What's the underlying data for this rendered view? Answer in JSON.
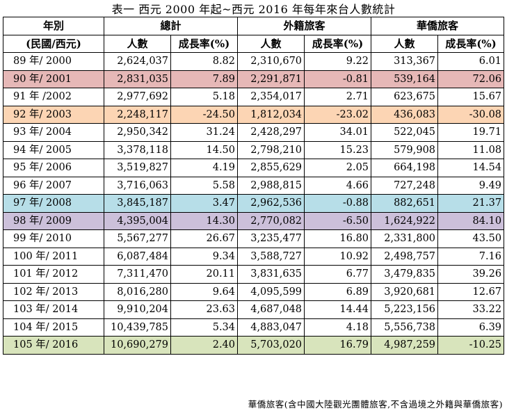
{
  "title": "表一 西元 2000 年起~西元 2016 年每年來台人數統計",
  "headers": {
    "year_top": "年別",
    "year_bottom": "(民國/西元)",
    "total": "總計",
    "foreign": "外籍旅客",
    "overseas": "華僑旅客",
    "count": "人數",
    "growth": "成長率(%)"
  },
  "highlight_colors": {
    "red": "#e6b8b7",
    "orange": "#fcd5b4",
    "blue": "#b7dee8",
    "purple": "#ccc0da",
    "green": "#d8e4bc"
  },
  "rows": [
    {
      "year": "89 年/ 2000",
      "total": "2,624,037",
      "total_growth": "8.82",
      "foreign": "2,310,670",
      "foreign_growth": "9.22",
      "overseas": "313,367",
      "overseas_growth": "6.01",
      "highlight": ""
    },
    {
      "year": "90 年/ 2001",
      "total": "2,831,035",
      "total_growth": "7.89",
      "foreign": "2,291,871",
      "foreign_growth": "-0.81",
      "overseas": "539,164",
      "overseas_growth": "72.06",
      "highlight": "#e6b8b7"
    },
    {
      "year": "91 年 /2002",
      "total": "2,977,692",
      "total_growth": "5.18",
      "foreign": "2,354,017",
      "foreign_growth": "2.71",
      "overseas": "623,675",
      "overseas_growth": "15.67",
      "highlight": ""
    },
    {
      "year": "92 年/ 2003",
      "total": "2,248,117",
      "total_growth": "-24.50",
      "foreign": "1,812,034",
      "foreign_growth": "-23.02",
      "overseas": "436,083",
      "overseas_growth": "-30.08",
      "highlight": "#fcd5b4"
    },
    {
      "year": "93 年/ 2004",
      "total": "2,950,342",
      "total_growth": "31.24",
      "foreign": "2,428,297",
      "foreign_growth": "34.01",
      "overseas": "522,045",
      "overseas_growth": "19.71",
      "highlight": ""
    },
    {
      "year": "94 年/ 2005",
      "total": "3,378,118",
      "total_growth": "14.50",
      "foreign": "2,798,210",
      "foreign_growth": "15.23",
      "overseas": "579,908",
      "overseas_growth": "11.08",
      "highlight": ""
    },
    {
      "year": "95 年/ 2006",
      "total": "3,519,827",
      "total_growth": "4.19",
      "foreign": "2,855,629",
      "foreign_growth": "2.05",
      "overseas": "664,198",
      "overseas_growth": "14.54",
      "highlight": ""
    },
    {
      "year": "96 年/ 2007",
      "total": "3,716,063",
      "total_growth": "5.58",
      "foreign": "2,988,815",
      "foreign_growth": "4.66",
      "overseas": "727,248",
      "overseas_growth": "9.49",
      "highlight": ""
    },
    {
      "year": "97 年/ 2008",
      "total": "3,845,187",
      "total_growth": "3.47",
      "foreign": "2,962,536",
      "foreign_growth": "-0.88",
      "overseas": "882,651",
      "overseas_growth": "21.37",
      "highlight": "#b7dee8"
    },
    {
      "year": "98 年/ 2009",
      "total": "4,395,004",
      "total_growth": "14.30",
      "foreign": "2,770,082",
      "foreign_growth": "-6.50",
      "overseas": "1,624,922",
      "overseas_growth": "84.10",
      "highlight": "#ccc0da"
    },
    {
      "year": "99 年/ 2010",
      "total": "5,567,277",
      "total_growth": "26.67",
      "foreign": "3,235,477",
      "foreign_growth": "16.80",
      "overseas": "2,331,800",
      "overseas_growth": "43.50",
      "highlight": ""
    },
    {
      "year": "100 年/ 2011",
      "total": "6,087,484",
      "total_growth": "9.34",
      "foreign": "3,588,727",
      "foreign_growth": "10.92",
      "overseas": "2,498,757",
      "overseas_growth": "7.16",
      "highlight": ""
    },
    {
      "year": "101 年/ 2012",
      "total": "7,311,470",
      "total_growth": "20.11",
      "foreign": "3,831,635",
      "foreign_growth": "6.77",
      "overseas": "3,479,835",
      "overseas_growth": "39.26",
      "highlight": ""
    },
    {
      "year": "102 年/ 2013",
      "total": "8,016,280",
      "total_growth": "9.64",
      "foreign": "4,095,599",
      "foreign_growth": "6.89",
      "overseas": "3,920,681",
      "overseas_growth": "12.67",
      "highlight": ""
    },
    {
      "year": "103 年/ 2014",
      "total": "9,910,204",
      "total_growth": "23.63",
      "foreign": "4,687,048",
      "foreign_growth": "14.44",
      "overseas": "5,223,156",
      "overseas_growth": "33.22",
      "highlight": ""
    },
    {
      "year": "104 年/ 2015",
      "total": "10,439,785",
      "total_growth": "5.34",
      "foreign": "4,883,047",
      "foreign_growth": "4.18",
      "overseas": "5,556,738",
      "overseas_growth": "6.39",
      "highlight": ""
    },
    {
      "year": "105 年/ 2016",
      "total": "10,690,279",
      "total_growth": "2.40",
      "foreign": "5,703,020",
      "foreign_growth": "16.79",
      "overseas": "4,987,259",
      "overseas_growth": "-10.25",
      "highlight": "#d8e4bc"
    }
  ],
  "footnote": "華僑旅客(含中國大陸觀光團體旅客,不含過境之外籍與華僑旅客)"
}
